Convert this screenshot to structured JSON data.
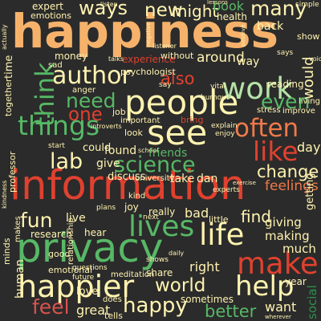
{
  "palette": {
    "background": "#2b2b2b",
    "peach": "#f6b26b",
    "cream": "#fff3b0",
    "mint": "#b6e3a8",
    "green": "#57b866",
    "dark_green": "#2f8f4e",
    "red": "#e0412f",
    "orange": "#ef7a4a",
    "rose": "#d9534f"
  },
  "words": {
    "happiness": "happiness",
    "information": "information",
    "privacy": "privacy",
    "people": "people",
    "happier": "happier",
    "make": "make",
    "see": "see",
    "work": "work",
    "author": "author",
    "things": "things",
    "lives": "lives",
    "life": "life",
    "help": "help",
    "science": "science",
    "think": "think",
    "need": "need",
    "often": "often",
    "like": "like",
    "many": "many",
    "new": "new",
    "ways": "ways",
    "lab": "lab",
    "fun": "fun",
    "happy": "happy",
    "feel": "feel",
    "world": "world",
    "better": "better",
    "even": "even",
    "also": "also",
    "one": "one",
    "change": "change",
    "find": "find",
    "feelings": "feelings",
    "day": "day",
    "around": "around",
    "would": "would",
    "might": "might",
    "book": "book",
    "money": "money",
    "psychologist": "psychologist",
    "experience": "experience",
    "friends": "friends",
    "could": "could",
    "found": "found",
    "give": "give",
    "live": "live",
    "bad": "bad",
    "giving": "giving",
    "making": "making",
    "much": "much",
    "right": "right",
    "great": "great",
    "want": "want",
    "human": "human",
    "love": "love",
    "social": "social",
    "good": "good",
    "emotional": "emotional",
    "research": "research",
    "hear": "hear",
    "joy": "joy",
    "really": "really",
    "sometimes": "sometimes",
    "tells": "tells",
    "does": "does",
    "minds": "minds",
    "relationship": "relationship",
    "year": "year",
    "reading": "reading",
    "way": "way",
    "back": "back",
    "health": "health",
    "listen": "listen",
    "expert": "expert",
    "emotions": "emotions",
    "professor": "professor",
    "time": "time",
    "together": "together",
    "sad": "sad",
    "anger": "anger",
    "job": "job",
    "important": "important",
    "bring": "bring",
    "explain": "explain",
    "stress": "stress",
    "improve": "improve",
    "discuss": "discuss",
    "university": "university",
    "take": "take",
    "dan": "dan",
    "getting": "getting",
    "plans": "plans",
    "kind": "kind",
    "next": "next",
    "little": "little",
    "share": "share",
    "meditation": "meditation",
    "questions": "questions",
    "future": "future",
    "shows": "shows",
    "without": "without",
    "listener": "listener",
    "school": "school",
    "simple": "simple",
    "lessons": "lessons",
    "living": "living",
    "experts": "experts",
    "look": "look",
    "start": "start",
    "say": "say",
    "burnout": "burnout",
    "talks": "talks",
    "vital": "vital",
    "enjoy": "enjoy",
    "introverts": "introverts",
    "wherever": "wherever",
    "show": "show",
    "voice": "voice",
    "daily": "daily",
    "positive": "positive",
    "negative": "negative",
    "says": "says",
    "exercise": "exercise",
    "makes": "makes",
    "actually": "actually",
    "kindness": "kindness"
  }
}
